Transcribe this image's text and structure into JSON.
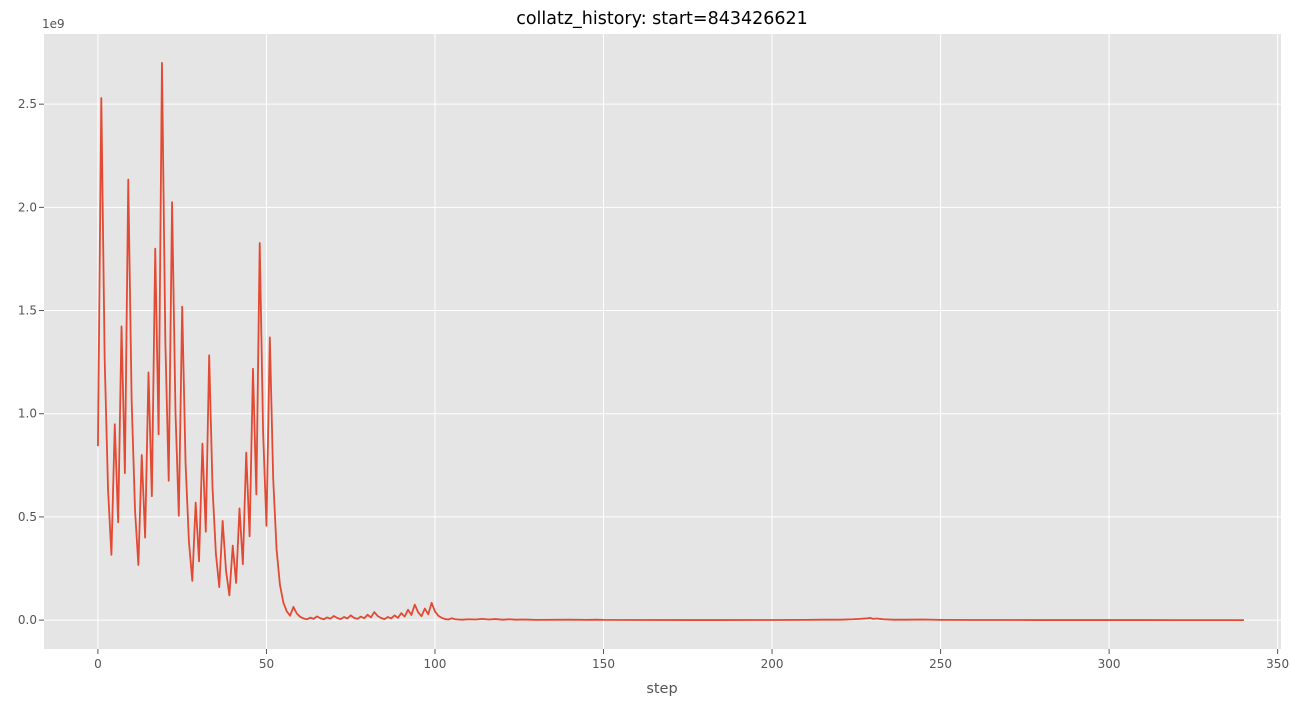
{
  "chart_data": {
    "type": "line",
    "title": "collatz_history: start=843426621",
    "xlabel": "step",
    "ylabel": "",
    "y_offset_label": "1e9",
    "xlim": [
      -16,
      351
    ],
    "ylim": [
      -0.14,
      2.84
    ],
    "x_ticks": [
      0,
      50,
      100,
      150,
      200,
      250,
      300,
      350
    ],
    "x_tick_labels": [
      "0",
      "50",
      "100",
      "150",
      "200",
      "250",
      "300",
      "350"
    ],
    "y_ticks": [
      0,
      0.5,
      1.0,
      1.5,
      2.0,
      2.5
    ],
    "y_tick_labels": [
      "0.0",
      "0.5",
      "1.0",
      "1.5",
      "2.0",
      "2.5"
    ],
    "grid": true,
    "colors": {
      "plot_background": "#e5e5e5",
      "grid": "#ffffff",
      "line": "#e24a33",
      "tick_label": "#555555"
    },
    "series": [
      {
        "points": [
          [
            0,
            0.843
          ],
          [
            1,
            2.53
          ],
          [
            2,
            1.265
          ],
          [
            3,
            0.633
          ],
          [
            4,
            0.316
          ],
          [
            5,
            0.949
          ],
          [
            6,
            0.474
          ],
          [
            7,
            1.423
          ],
          [
            8,
            0.712
          ],
          [
            9,
            2.135
          ],
          [
            10,
            1.067
          ],
          [
            11,
            0.534
          ],
          [
            12,
            0.267
          ],
          [
            13,
            0.8
          ],
          [
            14,
            0.4
          ],
          [
            15,
            1.2
          ],
          [
            16,
            0.6
          ],
          [
            17,
            1.8
          ],
          [
            18,
            0.9
          ],
          [
            19,
            2.7
          ],
          [
            20,
            1.35
          ],
          [
            21,
            0.675
          ],
          [
            22,
            2.025
          ],
          [
            23,
            1.013
          ],
          [
            24,
            0.506
          ],
          [
            25,
            1.519
          ],
          [
            26,
            0.759
          ],
          [
            27,
            0.38
          ],
          [
            28,
            0.19
          ],
          [
            29,
            0.57
          ],
          [
            30,
            0.285
          ],
          [
            31,
            0.855
          ],
          [
            32,
            0.428
          ],
          [
            33,
            1.283
          ],
          [
            34,
            0.641
          ],
          [
            35,
            0.321
          ],
          [
            36,
            0.16
          ],
          [
            37,
            0.481
          ],
          [
            38,
            0.24
          ],
          [
            39,
            0.12
          ],
          [
            40,
            0.361
          ],
          [
            41,
            0.18
          ],
          [
            42,
            0.541
          ],
          [
            43,
            0.271
          ],
          [
            44,
            0.812
          ],
          [
            45,
            0.406
          ],
          [
            46,
            1.218
          ],
          [
            47,
            0.609
          ],
          [
            48,
            1.827
          ],
          [
            49,
            0.913
          ],
          [
            50,
            0.457
          ],
          [
            51,
            1.37
          ],
          [
            52,
            0.685
          ],
          [
            53,
            0.343
          ],
          [
            54,
            0.171
          ],
          [
            55,
            0.086
          ],
          [
            56,
            0.043
          ],
          [
            57,
            0.021
          ],
          [
            58,
            0.064
          ],
          [
            59,
            0.032
          ],
          [
            60,
            0.016
          ],
          [
            61,
            0.008
          ],
          [
            62,
            0.004
          ],
          [
            63,
            0.012
          ],
          [
            64,
            0.006
          ],
          [
            65,
            0.018
          ],
          [
            66,
            0.009
          ],
          [
            67,
            0.004
          ],
          [
            68,
            0.013
          ],
          [
            69,
            0.007
          ],
          [
            70,
            0.02
          ],
          [
            71,
            0.01
          ],
          [
            72,
            0.005
          ],
          [
            73,
            0.015
          ],
          [
            74,
            0.008
          ],
          [
            75,
            0.023
          ],
          [
            76,
            0.011
          ],
          [
            77,
            0.006
          ],
          [
            78,
            0.017
          ],
          [
            79,
            0.009
          ],
          [
            80,
            0.026
          ],
          [
            81,
            0.013
          ],
          [
            82,
            0.039
          ],
          [
            83,
            0.02
          ],
          [
            84,
            0.01
          ],
          [
            85,
            0.005
          ],
          [
            86,
            0.015
          ],
          [
            87,
            0.008
          ],
          [
            88,
            0.023
          ],
          [
            89,
            0.011
          ],
          [
            90,
            0.034
          ],
          [
            91,
            0.017
          ],
          [
            92,
            0.05
          ],
          [
            93,
            0.025
          ],
          [
            94,
            0.075
          ],
          [
            95,
            0.038
          ],
          [
            96,
            0.019
          ],
          [
            97,
            0.056
          ],
          [
            98,
            0.028
          ],
          [
            99,
            0.084
          ],
          [
            100,
            0.042
          ],
          [
            101,
            0.021
          ],
          [
            102,
            0.011
          ],
          [
            103,
            0.005
          ],
          [
            104,
            0.003
          ],
          [
            105,
            0.009
          ],
          [
            106,
            0.004
          ],
          [
            107,
            0.003
          ],
          [
            108,
            0.002
          ],
          [
            110,
            0.004
          ],
          [
            112,
            0.003
          ],
          [
            114,
            0.006
          ],
          [
            116,
            0.003
          ],
          [
            118,
            0.005
          ],
          [
            120,
            0.002
          ],
          [
            122,
            0.004
          ],
          [
            124,
            0.002
          ],
          [
            126,
            0.003
          ],
          [
            128,
            0.002
          ],
          [
            130,
            0.001
          ],
          [
            140,
            0.002
          ],
          [
            145,
            0.001
          ],
          [
            148,
            0.002
          ],
          [
            150,
            0.001
          ],
          [
            160,
            0.0005
          ],
          [
            180,
            0.0003
          ],
          [
            200,
            0.0004
          ],
          [
            210,
            0.001
          ],
          [
            215,
            0.002
          ],
          [
            220,
            0.002
          ],
          [
            224,
            0.004
          ],
          [
            226,
            0.006
          ],
          [
            228,
            0.008
          ],
          [
            229,
            0.011
          ],
          [
            230,
            0.006
          ],
          [
            231,
            0.008
          ],
          [
            233,
            0.004
          ],
          [
            236,
            0.002
          ],
          [
            240,
            0.002
          ],
          [
            245,
            0.003
          ],
          [
            250,
            0.001
          ],
          [
            260,
            0.0005
          ],
          [
            280,
            0.0003
          ],
          [
            300,
            0.0002
          ],
          [
            320,
            0.0001
          ],
          [
            335,
            2e-05
          ],
          [
            340,
            1e-06
          ]
        ]
      }
    ]
  }
}
